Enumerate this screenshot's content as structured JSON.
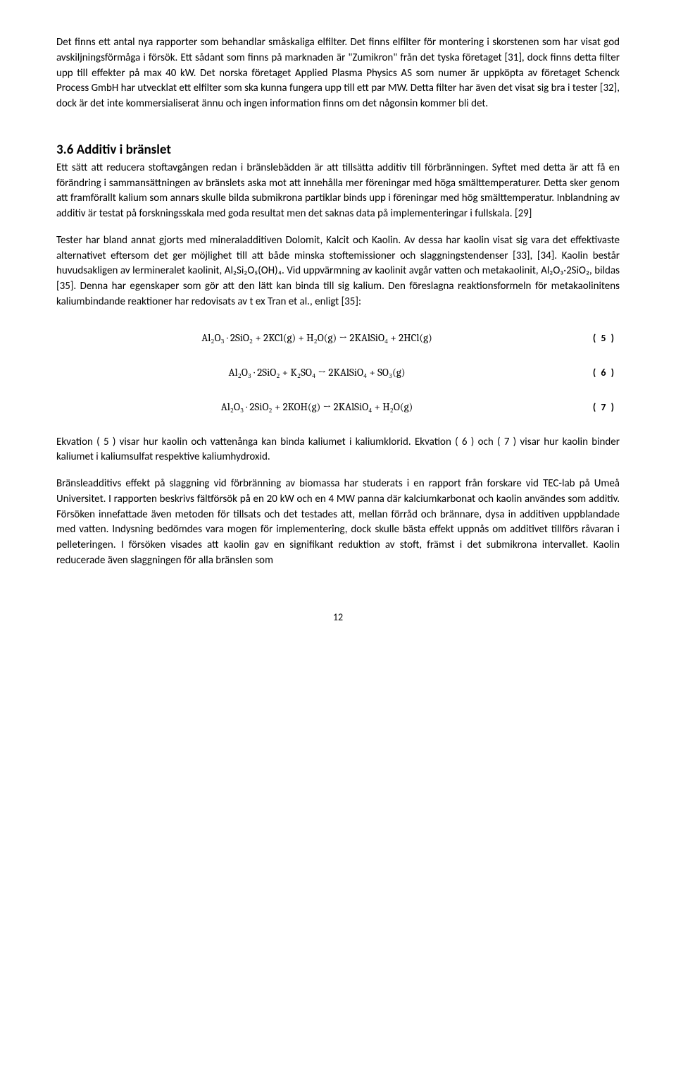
{
  "para1": "Det finns ett antal nya rapporter som behandlar småskaliga elfilter. Det finns elfilter för montering i skorstenen som har visat god avskiljningsförmåga i försök. Ett sådant som finns på marknaden är \"Zumikron\" från det tyska företaget [31], dock finns detta filter upp till effekter på max 40 kW. Det norska företaget Applied Plasma Physics AS som numer är uppköpta av företaget Schenck Process GmbH har utvecklat ett elfilter som ska kunna fungera upp till ett par MW. Detta filter har även det visat sig bra i tester [32], dock är det inte kommersialiserat ännu och ingen information finns om det någonsin kommer bli det.",
  "heading": "3.6  Additiv i bränslet",
  "para2": "Ett sätt att reducera stoftavgången redan i bränslebädden är att tillsätta additiv till förbränningen. Syftet med detta är att få en förändring i sammansättningen av bränslets aska mot att innehålla mer föreningar med höga smälttemperaturer. Detta sker genom att framförallt kalium som annars skulle bilda submikrona partiklar binds upp i föreningar med hög smälttemperatur. Inblandning av additiv är testat på forskningsskala med goda resultat men det saknas data på implementeringar i fullskala. [29]",
  "para3": "Tester har bland annat gjorts med mineraladditiven Dolomit, Kalcit och Kaolin. Av dessa har kaolin visat sig vara det effektivaste alternativet eftersom det ger möjlighet till att både minska stoftemissioner och slaggningstendenser [33], [34]. Kaolin består huvudsakligen av lermineralet kaolinit, Al₂Si₂O₅(OH)₄. Vid uppvärmning av kaolinit avgår vatten och metakaolinit, Al₂O₃·2SiO₂, bildas [35]. Denna har egenskaper som gör att den lätt kan binda till sig kalium. Den föreslagna reaktionsformeln för metakaolinitens kaliumbindande reaktioner har redovisats av t ex Tran et al., enligt [35]:",
  "equations": [
    {
      "formula": "Al₂O₃ · 2SiO₂ + 2KCl(g) + H₂O(g) → 2KAlSiO₄ + 2HCl(g)",
      "label": "( 5 )"
    },
    {
      "formula": "Al₂O₃ · 2SiO₂ + K₂SO₄ → 2KAlSiO₄ + SO₃(g)",
      "label": "( 6 )"
    },
    {
      "formula": "Al₂O₃ · 2SiO₂ + 2KOH(g) → 2KAlSiO₄ + H₂O(g)",
      "label": "( 7 )"
    }
  ],
  "para4": "Ekvation ( 5 ) visar hur kaolin och vattenånga kan binda kaliumet i kaliumklorid. Ekvation ( 6 ) och ( 7 ) visar hur kaolin binder kaliumet i kaliumsulfat respektive kaliumhydroxid.",
  "para5": "Bränsleadditivs effekt på slaggning vid förbränning av biomassa har studerats i en rapport från forskare vid TEC-lab på Umeå Universitet. I rapporten beskrivs fältförsök på en 20 kW och en 4 MW panna där kalciumkarbonat och kaolin användes som additiv. Försöken innefattade även metoden för tillsats och det testades att, mellan förråd och brännare, dysa in additiven uppblandade med vatten. Indysning bedömdes vara mogen för implementering, dock skulle bästa effekt uppnås om additivet tillförs råvaran i pelleteringen. I försöken visades att kaolin gav en signifikant reduktion av stoft, främst i det submikrona intervallet. Kaolin reducerade även slaggningen för alla bränslen som",
  "pageNumber": "12"
}
